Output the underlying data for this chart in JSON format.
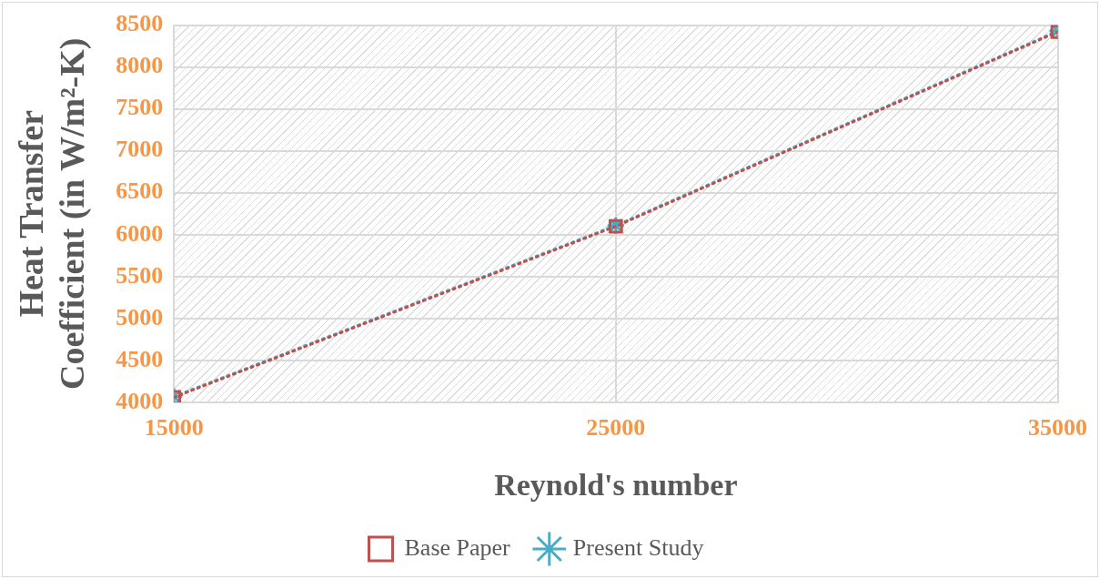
{
  "chart_data": {
    "type": "line",
    "xlabel": "Reynold's number",
    "ylabel": "Heat Transfer\nCoefficient (in W/m²-K)",
    "x": [
      15000,
      25000,
      35000
    ],
    "series": [
      {
        "name": "Base Paper",
        "color": "#c0504d",
        "values": [
          4060,
          6100,
          8420
        ],
        "marker": "square"
      },
      {
        "name": "Present Study",
        "color": "#4bacc6",
        "values": [
          4070,
          6110,
          8430
        ],
        "marker": "cross"
      }
    ],
    "xlim": [
      15000,
      35000
    ],
    "xticks": [
      15000,
      25000,
      35000
    ],
    "ylim": [
      4000,
      8500
    ],
    "yticks": [
      4000,
      4500,
      5000,
      5500,
      6000,
      6500,
      7000,
      7500,
      8000,
      8500
    ],
    "grid": true,
    "legend": "bottom",
    "line_style": "dotted"
  }
}
